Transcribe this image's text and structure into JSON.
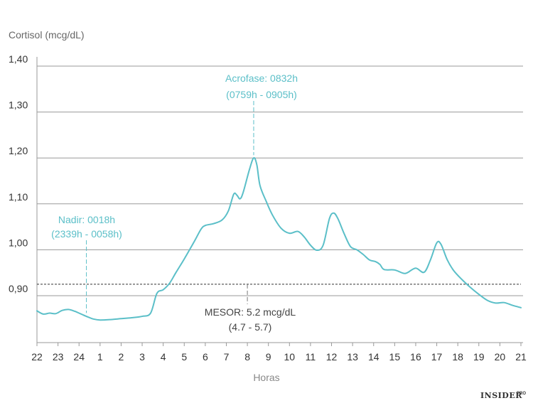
{
  "chart_data": {
    "type": "line",
    "ylabel": "Cortisol (mcg/dL)",
    "xlabel": "Horas",
    "ylim": [
      0.8,
      1.4
    ],
    "yticks": [
      "0,90",
      "1,00",
      "1,10",
      "1,20",
      "1,30",
      "1,40"
    ],
    "ytick_values": [
      0.9,
      1.0,
      1.1,
      1.2,
      1.3,
      1.4
    ],
    "xticks": [
      "22",
      "23",
      "24",
      "1",
      "2",
      "3",
      "4",
      "5",
      "6",
      "7",
      "8",
      "9",
      "10",
      "11",
      "12",
      "13",
      "14",
      "15",
      "16",
      "17",
      "18",
      "19",
      "20",
      "21"
    ],
    "xlim": [
      0,
      23
    ],
    "series": [
      {
        "name": "Cortisol",
        "color": "#5bbfc8",
        "points": [
          [
            0.0,
            0.867
          ],
          [
            0.3,
            0.86
          ],
          [
            0.6,
            0.862
          ],
          [
            0.9,
            0.861
          ],
          [
            1.2,
            0.868
          ],
          [
            1.5,
            0.87
          ],
          [
            1.8,
            0.866
          ],
          [
            2.1,
            0.86
          ],
          [
            2.4,
            0.854
          ],
          [
            2.7,
            0.849
          ],
          [
            3.0,
            0.847
          ],
          [
            3.5,
            0.848
          ],
          [
            4.0,
            0.85
          ],
          [
            4.5,
            0.852
          ],
          [
            5.0,
            0.855
          ],
          [
            5.4,
            0.862
          ],
          [
            5.7,
            0.905
          ],
          [
            6.0,
            0.913
          ],
          [
            6.3,
            0.927
          ],
          [
            6.6,
            0.95
          ],
          [
            7.0,
            0.98
          ],
          [
            7.5,
            1.02
          ],
          [
            7.8,
            1.045
          ],
          [
            8.0,
            1.053
          ],
          [
            8.4,
            1.057
          ],
          [
            8.8,
            1.065
          ],
          [
            9.1,
            1.085
          ],
          [
            9.35,
            1.121
          ],
          [
            9.5,
            1.119
          ],
          [
            9.65,
            1.111
          ],
          [
            9.8,
            1.125
          ],
          [
            10.1,
            1.175
          ],
          [
            10.3,
            1.2
          ],
          [
            10.45,
            1.185
          ],
          [
            10.6,
            1.14
          ],
          [
            10.9,
            1.105
          ],
          [
            11.2,
            1.075
          ],
          [
            11.6,
            1.047
          ],
          [
            12.0,
            1.036
          ],
          [
            12.4,
            1.04
          ],
          [
            12.7,
            1.028
          ],
          [
            13.0,
            1.01
          ],
          [
            13.3,
            0.999
          ],
          [
            13.6,
            1.01
          ],
          [
            13.9,
            1.068
          ],
          [
            14.1,
            1.08
          ],
          [
            14.3,
            1.068
          ],
          [
            14.6,
            1.035
          ],
          [
            14.9,
            1.007
          ],
          [
            15.2,
            1.0
          ],
          [
            15.5,
            0.99
          ],
          [
            15.8,
            0.978
          ],
          [
            16.1,
            0.974
          ],
          [
            16.3,
            0.968
          ],
          [
            16.5,
            0.957
          ],
          [
            17.0,
            0.956
          ],
          [
            17.4,
            0.949
          ],
          [
            17.6,
            0.95
          ],
          [
            18.0,
            0.96
          ],
          [
            18.4,
            0.951
          ],
          [
            18.7,
            0.978
          ],
          [
            19.0,
            1.015
          ],
          [
            19.2,
            1.012
          ],
          [
            19.5,
            0.978
          ],
          [
            19.8,
            0.955
          ],
          [
            20.2,
            0.935
          ],
          [
            20.6,
            0.918
          ],
          [
            21.0,
            0.903
          ],
          [
            21.4,
            0.89
          ],
          [
            21.8,
            0.884
          ],
          [
            22.2,
            0.885
          ],
          [
            22.6,
            0.879
          ],
          [
            23.0,
            0.874
          ]
        ]
      }
    ],
    "mesor": {
      "value": 0.925,
      "marker_x": 10.0,
      "label": "MESOR: 5.2 mcg/dL",
      "range": "(4.7 - 5.7)"
    },
    "acrofase": {
      "x": 10.3,
      "value": 1.2,
      "label": "Acrofase: 0832h",
      "range": "(0759h - 0905h)"
    },
    "nadir": {
      "x": 2.35,
      "value": 0.856,
      "label": "Nadir: 0018h",
      "range": "(2339h - 0058h)"
    },
    "annotation_color": "#5bbfc8",
    "brand": {
      "name": "INSIDER",
      "sup": "PRO"
    }
  }
}
